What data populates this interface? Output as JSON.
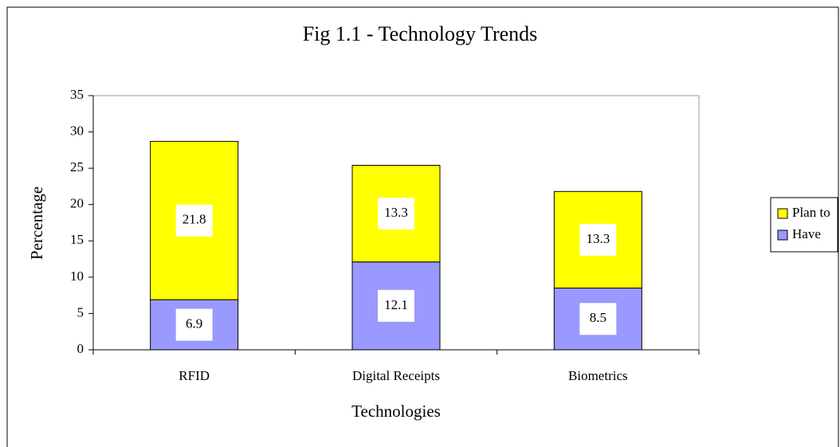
{
  "chart_data": {
    "type": "stacked_bar",
    "title": "Fig 1.1 - Technology Trends",
    "x_label": "Technologies",
    "y_label": "Percentage",
    "categories": [
      "RFID",
      "Digital Receipts",
      "Biometrics"
    ],
    "series": [
      {
        "name": "Have",
        "color": "#9999ff",
        "values": [
          6.9,
          12.1,
          8.5
        ]
      },
      {
        "name": "Plan to",
        "color": "#ffff00",
        "values": [
          21.8,
          13.3,
          13.3
        ]
      }
    ],
    "ylim": [
      0,
      35
    ],
    "yticks": [
      0,
      5,
      10,
      15,
      20,
      25,
      30,
      35
    ],
    "legend": "right"
  }
}
